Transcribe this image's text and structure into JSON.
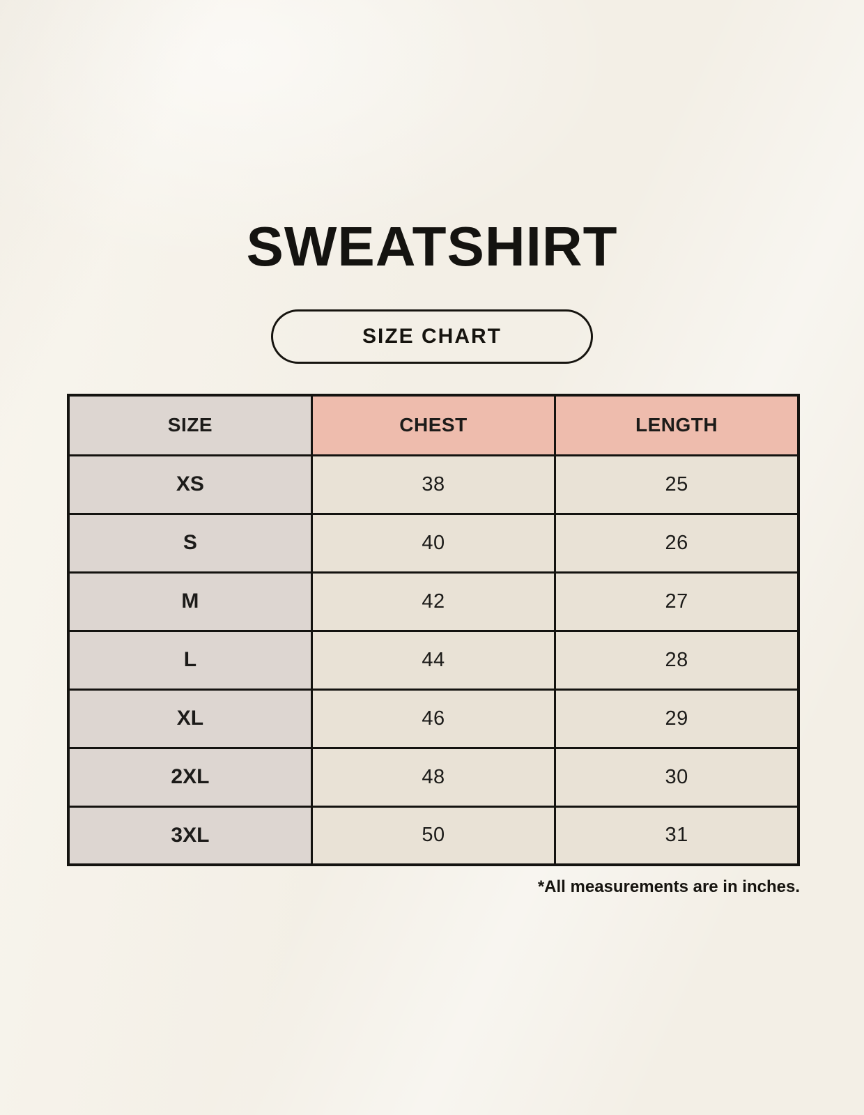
{
  "page": {
    "title": "SWEATSHIRT"
  },
  "size_chart_button": {
    "label": "SIZE CHART"
  },
  "table": {
    "columns": [
      "SIZE",
      "CHEST",
      "LENGTH"
    ],
    "rows": [
      {
        "size": "XS",
        "chest": "38",
        "length": "25"
      },
      {
        "size": "S",
        "chest": "40",
        "length": "26"
      },
      {
        "size": "M",
        "chest": "42",
        "length": "27"
      },
      {
        "size": "L",
        "chest": "44",
        "length": "28"
      },
      {
        "size": "XL",
        "chest": "46",
        "length": "29"
      },
      {
        "size": "2XL",
        "chest": "48",
        "length": "30"
      },
      {
        "size": "3XL",
        "chest": "50",
        "length": "31"
      }
    ]
  },
  "footer": {
    "note": "*All measurements are in inches."
  },
  "colors": {
    "background": "#f3efe6",
    "size_column_bg": "#ddd6d1",
    "header_accent_bg": "#eebcad",
    "data_cell_bg": "#e9e2d6",
    "border": "#141310",
    "text": "#16140f"
  }
}
